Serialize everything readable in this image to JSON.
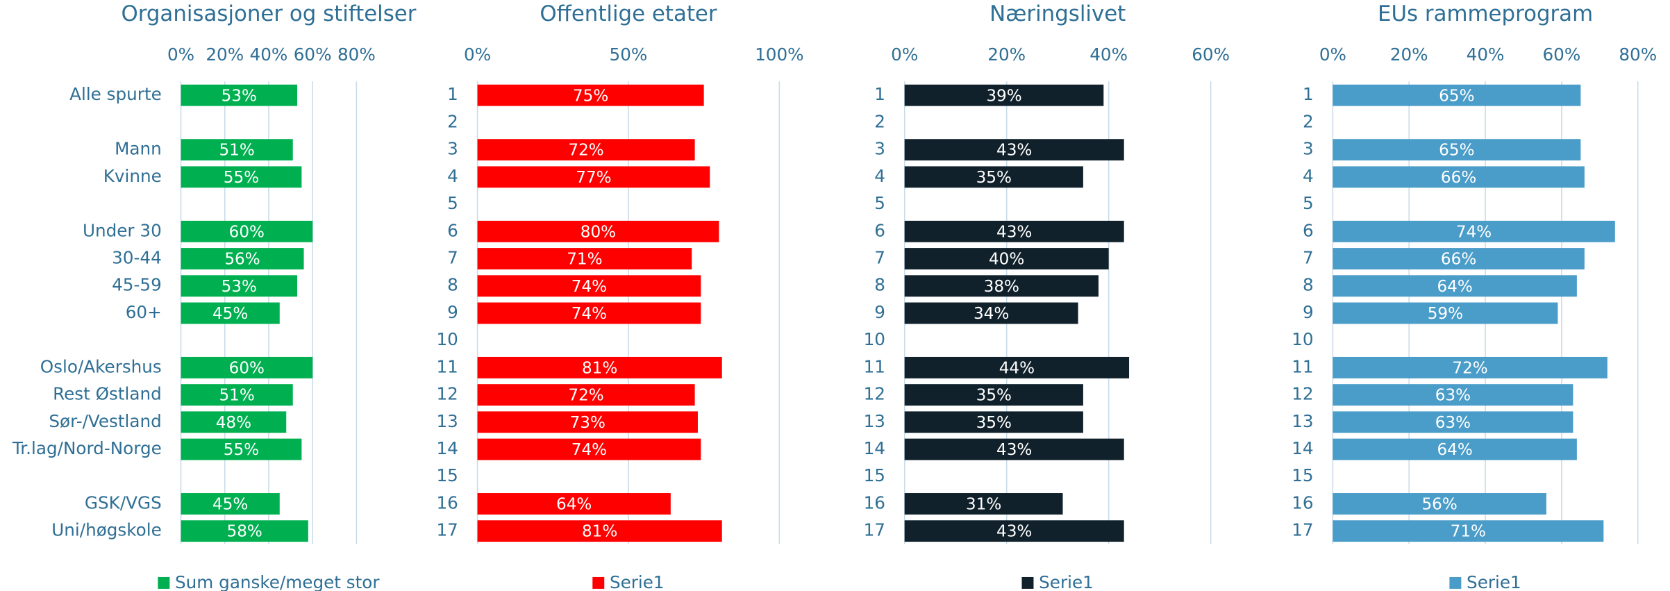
{
  "chart_data": [
    {
      "type": "bar",
      "orientation": "horizontal",
      "title": "Organisasjoner og stiftelser",
      "categories": [
        "Alle spurte",
        null,
        "Mann",
        "Kvinne",
        null,
        "Under 30",
        "30-44",
        "45-59",
        "60+",
        null,
        "Oslo/Akershus",
        "Rest Østland",
        "Sør-/Vestland",
        "Tr.lag/Nord-Norge",
        null,
        "GSK/VGS",
        "Uni/høgskole"
      ],
      "series": [
        {
          "name": "Sum ganske/meget stor",
          "color": "#00b050",
          "values": [
            53,
            null,
            51,
            55,
            null,
            60,
            56,
            53,
            45,
            null,
            60,
            51,
            48,
            55,
            null,
            45,
            58
          ],
          "value_labels": [
            "53%",
            null,
            "51%",
            "55%",
            null,
            "60%",
            "56%",
            "53%",
            "45%",
            null,
            "60%",
            "51%",
            "48%",
            "55%",
            null,
            "45%",
            "58%"
          ]
        }
      ],
      "xlim": [
        0,
        80
      ],
      "xticks": [
        {
          "value": 0,
          "label": "0%"
        },
        {
          "value": 20,
          "label": "20%"
        },
        {
          "value": 40,
          "label": "40%"
        },
        {
          "value": 60,
          "label": "60%"
        },
        {
          "value": 80,
          "label": "80%"
        }
      ]
    },
    {
      "type": "bar",
      "orientation": "horizontal",
      "title": "Offentlige etater",
      "categories": [
        "1",
        "2",
        "3",
        "4",
        "5",
        "6",
        "7",
        "8",
        "9",
        "10",
        "11",
        "12",
        "13",
        "14",
        "15",
        "16",
        "17"
      ],
      "series": [
        {
          "name": "Serie1",
          "color": "#ff0000",
          "values": [
            75,
            null,
            72,
            77,
            null,
            80,
            71,
            74,
            74,
            null,
            81,
            72,
            73,
            74,
            null,
            64,
            81
          ],
          "value_labels": [
            "75%",
            null,
            "72%",
            "77%",
            null,
            "80%",
            "71%",
            "74%",
            "74%",
            null,
            "81%",
            "72%",
            "73%",
            "74%",
            null,
            "64%",
            "81%"
          ]
        }
      ],
      "xlim": [
        0,
        100
      ],
      "xticks": [
        {
          "value": 0,
          "label": "0%"
        },
        {
          "value": 50,
          "label": "50%"
        },
        {
          "value": 100,
          "label": "100%"
        }
      ]
    },
    {
      "type": "bar",
      "orientation": "horizontal",
      "title": "Næringslivet",
      "categories": [
        "1",
        "2",
        "3",
        "4",
        "5",
        "6",
        "7",
        "8",
        "9",
        "10",
        "11",
        "12",
        "13",
        "14",
        "15",
        "16",
        "17"
      ],
      "series": [
        {
          "name": "Serie1",
          "color": "#10212b",
          "values": [
            39,
            null,
            43,
            35,
            null,
            43,
            40,
            38,
            34,
            null,
            44,
            35,
            35,
            43,
            null,
            31,
            43
          ],
          "value_labels": [
            "39%",
            null,
            "43%",
            "35%",
            null,
            "43%",
            "40%",
            "38%",
            "34%",
            null,
            "44%",
            "35%",
            "35%",
            "43%",
            null,
            "31%",
            "43%"
          ]
        }
      ],
      "xlim": [
        0,
        60
      ],
      "xticks": [
        {
          "value": 0,
          "label": "0%"
        },
        {
          "value": 20,
          "label": "20%"
        },
        {
          "value": 40,
          "label": "40%"
        },
        {
          "value": 60,
          "label": "60%"
        }
      ]
    },
    {
      "type": "bar",
      "orientation": "horizontal",
      "title": "EUs rammeprogram",
      "categories": [
        "1",
        "2",
        "3",
        "4",
        "5",
        "6",
        "7",
        "8",
        "9",
        "10",
        "11",
        "12",
        "13",
        "14",
        "15",
        "16",
        "17"
      ],
      "series": [
        {
          "name": "Serie1",
          "color": "#4a9cc9",
          "values": [
            65,
            null,
            65,
            66,
            null,
            74,
            66,
            64,
            59,
            null,
            72,
            63,
            63,
            64,
            null,
            56,
            71
          ],
          "value_labels": [
            "65%",
            null,
            "65%",
            "66%",
            null,
            "74%",
            "66%",
            "64%",
            "59%",
            null,
            "72%",
            "63%",
            "63%",
            "64%",
            null,
            "56%",
            "71%"
          ]
        }
      ],
      "xlim": [
        0,
        80
      ],
      "xticks": [
        {
          "value": 0,
          "label": "0%"
        },
        {
          "value": 20,
          "label": "20%"
        },
        {
          "value": 40,
          "label": "40%"
        },
        {
          "value": 60,
          "label": "60%"
        },
        {
          "value": 80,
          "label": "80%"
        }
      ]
    }
  ]
}
